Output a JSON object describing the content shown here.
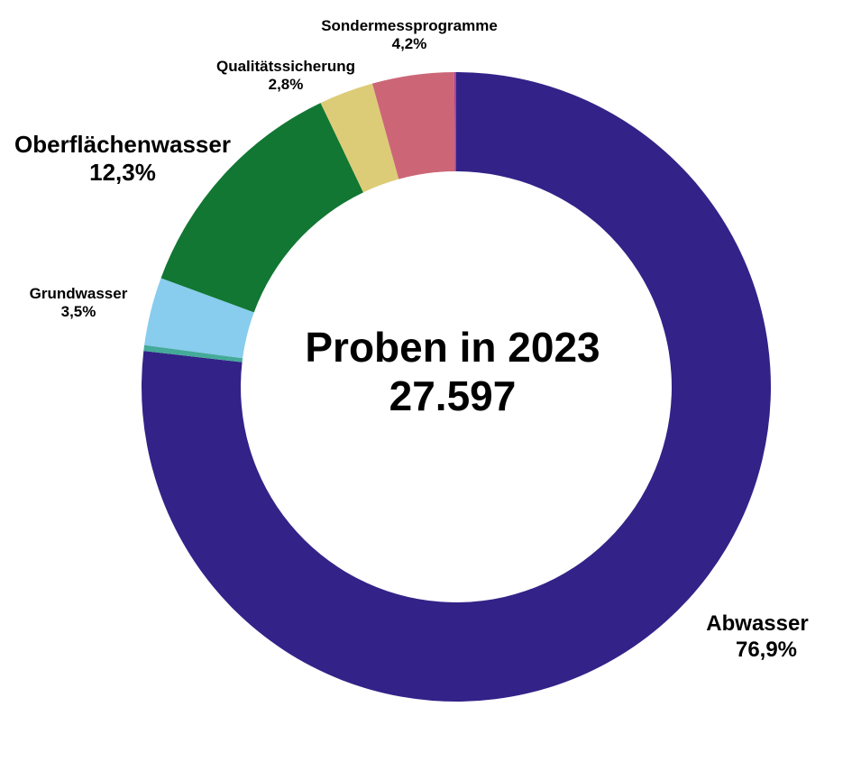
{
  "chart_data": {
    "type": "donut",
    "center_title": "Proben in 2023",
    "center_total": "27.597",
    "slices": [
      {
        "name": "Abwasser",
        "label": "76,9%",
        "value": 76.9,
        "color": "#332288"
      },
      {
        "name": "",
        "label": "",
        "value": 0.3,
        "color": "#44AA99"
      },
      {
        "name": "Grundwasser",
        "label": "3,5%",
        "value": 3.5,
        "color": "#88CCEE"
      },
      {
        "name": "Oberflächenwasser",
        "label": "12,3%",
        "value": 12.3,
        "color": "#117733"
      },
      {
        "name": "Qualitätssicherung",
        "label": "2,8%",
        "value": 2.8,
        "color": "#DDCC77"
      },
      {
        "name": "Sondermessprogramme",
        "label": "4,2%",
        "value": 4.2,
        "color": "#CC6677"
      },
      {
        "name": "",
        "label": "",
        "value": 0.1,
        "color": "#AA4499"
      }
    ],
    "direction": "clockwise from top"
  }
}
